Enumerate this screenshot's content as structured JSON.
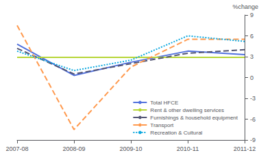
{
  "chart_data": {
    "type": "line",
    "categories": [
      "2007-08",
      "2008-09",
      "2009-10",
      "2010-11",
      "2011-12"
    ],
    "series": [
      {
        "name": "Total HFCE",
        "values": [
          4.8,
          0.3,
          2.2,
          3.8,
          3.3
        ],
        "line_style": "solid"
      },
      {
        "name": "Rent & other dwelling services",
        "values": [
          2.9,
          2.9,
          2.9,
          2.9,
          2.9
        ],
        "line_style": "solid"
      },
      {
        "name": "Furnishings & household equipment",
        "values": [
          4.2,
          0.5,
          2.0,
          3.5,
          4.0
        ],
        "line_style": "dashed"
      },
      {
        "name": "Transport",
        "values": [
          7.5,
          -7.5,
          1.5,
          5.5,
          5.5
        ],
        "line_style": "dashed"
      },
      {
        "name": "Recreation & Cultural",
        "values": [
          3.8,
          1.0,
          2.5,
          6.0,
          5.2
        ],
        "line_style": "dotted"
      }
    ],
    "ylabel": "%change",
    "ylim": [
      -9,
      9
    ],
    "yticks": [
      -9,
      -6,
      -3,
      0,
      3,
      6,
      9
    ],
    "grid": false,
    "legend": "lower right"
  }
}
